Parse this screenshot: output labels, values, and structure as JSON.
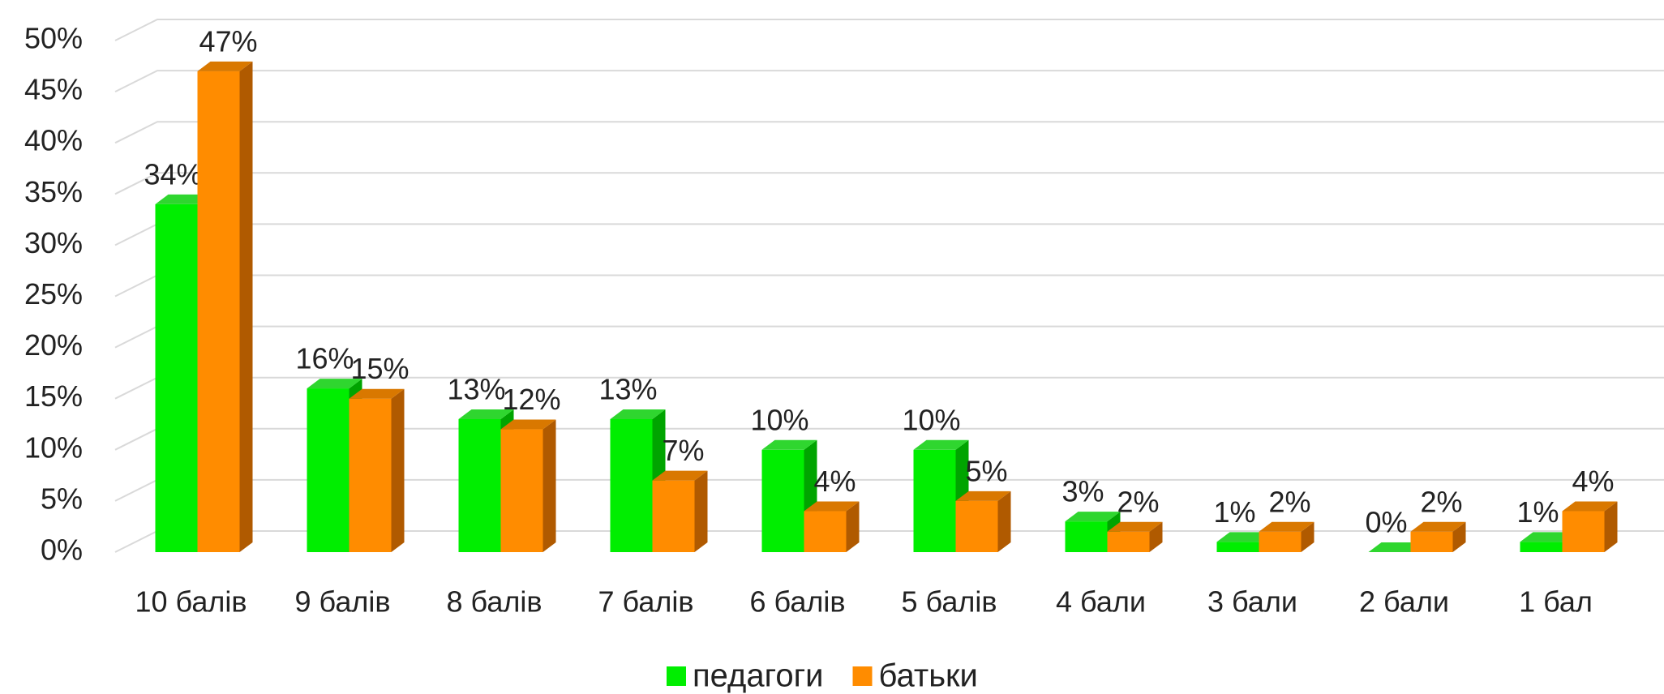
{
  "chart_data": {
    "type": "bar3d",
    "categories": [
      "10 балів",
      "9 балів",
      "8 балів",
      "7 балів",
      "6 балів",
      "5 балів",
      "4 бали",
      "3 бали",
      "2 бали",
      "1 бал"
    ],
    "series": [
      {
        "name": "педагоги",
        "color": "#00ee00",
        "side": "#00a400",
        "top": "#2fd62f",
        "values": [
          34,
          16,
          13,
          13,
          10,
          10,
          3,
          1,
          0,
          1
        ],
        "value_labels": [
          "34%",
          "16%",
          "13%",
          "13%",
          "10%",
          "10%",
          "3%",
          "1%",
          "0%",
          "1%"
        ]
      },
      {
        "name": "батьки",
        "color": "#ff8c00",
        "side": "#b05a00",
        "top": "#d97800",
        "values": [
          47,
          15,
          12,
          7,
          4,
          5,
          2,
          2,
          2,
          4
        ],
        "value_labels": [
          "47%",
          "15%",
          "12%",
          "7%",
          "4%",
          "5%",
          "2%",
          "2%",
          "2%",
          "4%"
        ]
      }
    ],
    "ylim": [
      0,
      50
    ],
    "yticks": [
      {
        "value": 0,
        "label": "0%"
      },
      {
        "value": 5,
        "label": "5%"
      },
      {
        "value": 10,
        "label": "10%"
      },
      {
        "value": 15,
        "label": "15%"
      },
      {
        "value": 20,
        "label": "20%"
      },
      {
        "value": 25,
        "label": "25%"
      },
      {
        "value": 30,
        "label": "30%"
      },
      {
        "value": 35,
        "label": "35%"
      },
      {
        "value": 40,
        "label": "40%"
      },
      {
        "value": 45,
        "label": "45%"
      },
      {
        "value": 50,
        "label": "50%"
      }
    ],
    "grid": true,
    "legend": "bottom"
  }
}
